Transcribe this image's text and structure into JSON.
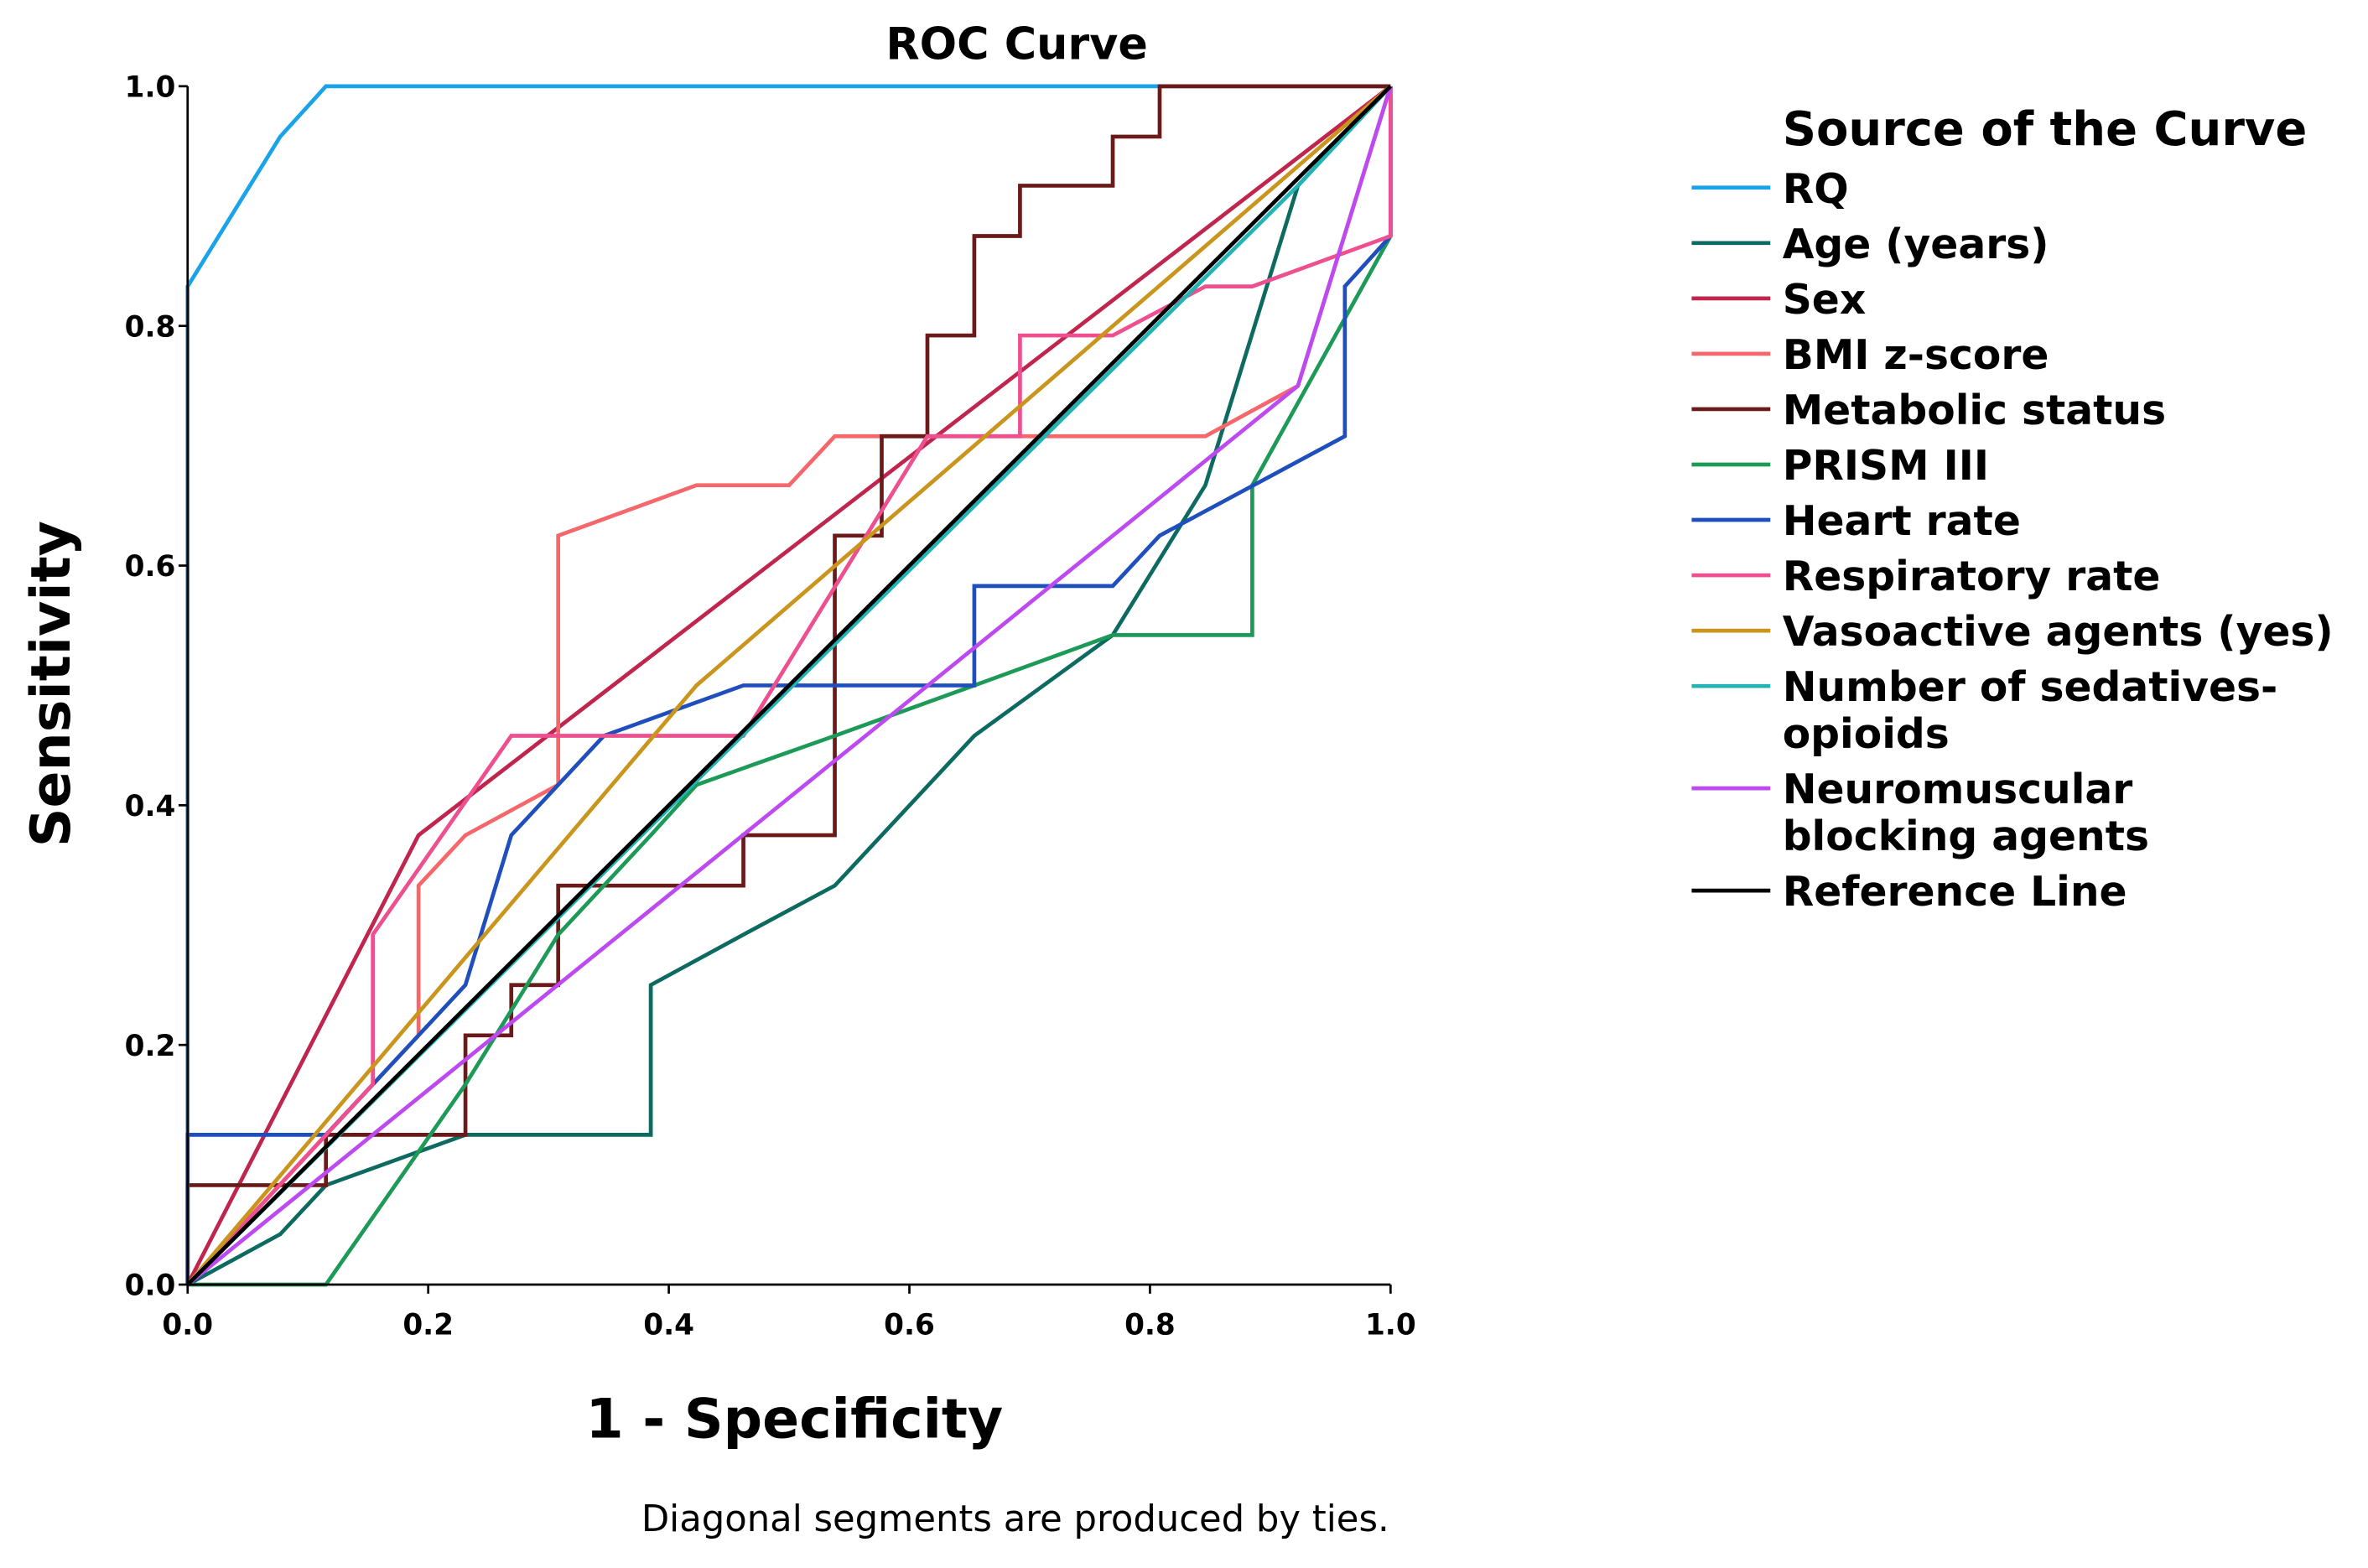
{
  "chart_data": {
    "type": "line",
    "title": "ROC Curve",
    "xlabel": "1 - Specificity",
    "ylabel": "Sensitivity",
    "xlim": [
      0.0,
      1.0
    ],
    "ylim": [
      0.0,
      1.0
    ],
    "x_ticks": [
      "0.0",
      "0.2",
      "0.4",
      "0.6",
      "0.8",
      "1.0"
    ],
    "y_ticks": [
      "0.0",
      "0.2",
      "0.4",
      "0.6",
      "0.8",
      "1.0"
    ],
    "grid": false,
    "legend_title": "Source of the Curve",
    "legend_position": "right",
    "footnote": "Diagonal segments are produced by ties.",
    "series": [
      {
        "name": "RQ",
        "color": "#1aa3e8",
        "points": [
          [
            0.0,
            0.0
          ],
          [
            0.0,
            0.833
          ],
          [
            0.077,
            0.958
          ],
          [
            0.115,
            1.0
          ],
          [
            1.0,
            1.0
          ]
        ]
      },
      {
        "name": "Age (years)",
        "color": "#0c6a60",
        "points": [
          [
            0.0,
            0.0
          ],
          [
            0.077,
            0.042
          ],
          [
            0.115,
            0.083
          ],
          [
            0.231,
            0.125
          ],
          [
            0.385,
            0.125
          ],
          [
            0.385,
            0.25
          ],
          [
            0.462,
            0.292
          ],
          [
            0.538,
            0.333
          ],
          [
            0.654,
            0.458
          ],
          [
            0.769,
            0.542
          ],
          [
            0.846,
            0.667
          ],
          [
            0.923,
            0.917
          ],
          [
            1.0,
            1.0
          ]
        ]
      },
      {
        "name": "Sex",
        "color": "#c0254e",
        "points": [
          [
            0.0,
            0.0
          ],
          [
            0.192,
            0.375
          ],
          [
            1.0,
            1.0
          ]
        ]
      },
      {
        "name": "BMI z-score",
        "color": "#f5676b",
        "points": [
          [
            0.0,
            0.0
          ],
          [
            0.115,
            0.125
          ],
          [
            0.192,
            0.208
          ],
          [
            0.192,
            0.333
          ],
          [
            0.231,
            0.375
          ],
          [
            0.308,
            0.417
          ],
          [
            0.308,
            0.625
          ],
          [
            0.423,
            0.667
          ],
          [
            0.5,
            0.667
          ],
          [
            0.538,
            0.708
          ],
          [
            0.846,
            0.708
          ],
          [
            0.923,
            0.75
          ],
          [
            1.0,
            1.0
          ]
        ]
      },
      {
        "name": "Metabolic status",
        "color": "#6b1a1a",
        "points": [
          [
            0.0,
            0.0
          ],
          [
            0.0,
            0.083
          ],
          [
            0.115,
            0.083
          ],
          [
            0.115,
            0.125
          ],
          [
            0.231,
            0.125
          ],
          [
            0.231,
            0.208
          ],
          [
            0.269,
            0.208
          ],
          [
            0.269,
            0.25
          ],
          [
            0.308,
            0.25
          ],
          [
            0.308,
            0.333
          ],
          [
            0.462,
            0.333
          ],
          [
            0.462,
            0.375
          ],
          [
            0.538,
            0.375
          ],
          [
            0.538,
            0.625
          ],
          [
            0.577,
            0.625
          ],
          [
            0.577,
            0.708
          ],
          [
            0.615,
            0.708
          ],
          [
            0.615,
            0.792
          ],
          [
            0.654,
            0.792
          ],
          [
            0.654,
            0.875
          ],
          [
            0.692,
            0.875
          ],
          [
            0.692,
            0.917
          ],
          [
            0.769,
            0.917
          ],
          [
            0.769,
            0.958
          ],
          [
            0.808,
            0.958
          ],
          [
            0.808,
            1.0
          ],
          [
            1.0,
            1.0
          ]
        ]
      },
      {
        "name": "PRISM III",
        "color": "#1d9a57",
        "points": [
          [
            0.0,
            0.0
          ],
          [
            0.115,
            0.0
          ],
          [
            0.231,
            0.167
          ],
          [
            0.308,
            0.292
          ],
          [
            0.385,
            0.375
          ],
          [
            0.423,
            0.417
          ],
          [
            0.538,
            0.458
          ],
          [
            0.654,
            0.5
          ],
          [
            0.769,
            0.542
          ],
          [
            0.885,
            0.542
          ],
          [
            0.885,
            0.667
          ],
          [
            1.0,
            0.875
          ],
          [
            1.0,
            1.0
          ]
        ]
      },
      {
        "name": "Heart rate",
        "color": "#1e4fbd",
        "points": [
          [
            0.0,
            0.0
          ],
          [
            0.0,
            0.125
          ],
          [
            0.115,
            0.125
          ],
          [
            0.231,
            0.25
          ],
          [
            0.269,
            0.375
          ],
          [
            0.346,
            0.458
          ],
          [
            0.462,
            0.5
          ],
          [
            0.654,
            0.5
          ],
          [
            0.654,
            0.583
          ],
          [
            0.769,
            0.583
          ],
          [
            0.808,
            0.625
          ],
          [
            0.962,
            0.708
          ],
          [
            0.962,
            0.833
          ],
          [
            1.0,
            0.875
          ],
          [
            1.0,
            1.0
          ]
        ]
      },
      {
        "name": "Respiratory rate",
        "color": "#ee4f8e",
        "points": [
          [
            0.0,
            0.0
          ],
          [
            0.154,
            0.167
          ],
          [
            0.154,
            0.292
          ],
          [
            0.269,
            0.458
          ],
          [
            0.462,
            0.458
          ],
          [
            0.615,
            0.708
          ],
          [
            0.692,
            0.708
          ],
          [
            0.692,
            0.792
          ],
          [
            0.769,
            0.792
          ],
          [
            0.846,
            0.833
          ],
          [
            0.885,
            0.833
          ],
          [
            1.0,
            0.875
          ],
          [
            1.0,
            1.0
          ]
        ]
      },
      {
        "name": "Vasoactive agents (yes)",
        "color": "#c9951c",
        "points": [
          [
            0.0,
            0.0
          ],
          [
            0.423,
            0.5
          ],
          [
            1.0,
            1.0
          ]
        ]
      },
      {
        "name": "Number of sedatives-\nopioids",
        "color": "#22b3b4",
        "points": [
          [
            0.0,
            0.0
          ],
          [
            0.923,
            0.917
          ],
          [
            1.0,
            1.0
          ]
        ]
      },
      {
        "name": "Neuromuscular\nblocking agents",
        "color": "#bd4af0",
        "points": [
          [
            0.0,
            0.0
          ],
          [
            0.923,
            0.75
          ],
          [
            1.0,
            1.0
          ]
        ]
      },
      {
        "name": "Reference Line",
        "color": "#000000",
        "points": [
          [
            0.0,
            0.0
          ],
          [
            1.0,
            1.0
          ]
        ]
      }
    ]
  }
}
